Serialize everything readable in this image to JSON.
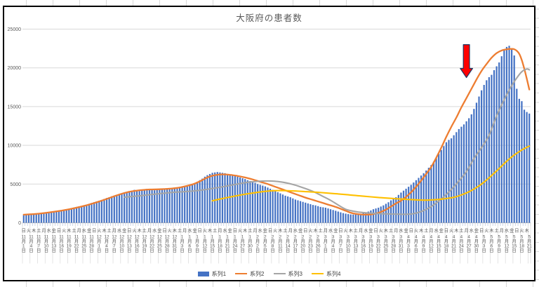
{
  "sheet": {
    "gridline_color": "#d9d9d9",
    "background": "#ffffff"
  },
  "chart": {
    "title": "大阪府の患者数",
    "title_color": "#595959",
    "background": "#ffffff",
    "border_color": "#000000",
    "plot": {
      "gridline_color": "#d9d9d9",
      "axis_line_color": "#bfbfbf",
      "tick_color": "#c2cbdf",
      "separator_color": "#d9d9d9"
    },
    "y_axis": {
      "min": 0,
      "max": 25000,
      "step": 5000,
      "tick_labels": [
        "0",
        "5000",
        "10000",
        "15000",
        "20000",
        "25000"
      ],
      "label_color": "#595959"
    },
    "x_axis": {
      "label_color": "#595959",
      "dow_cycle": [
        "日",
        "月",
        "火",
        "水",
        "木",
        "金",
        "土"
      ],
      "dow_label_interval": 2,
      "date_label_interval": 3,
      "month_suffix": "月",
      "day_suffix": "日",
      "months": [
        {
          "num": "11",
          "days": 30
        },
        {
          "num": "12",
          "days": 31
        },
        {
          "num": "1",
          "days": 31
        },
        {
          "num": "2",
          "days": 28
        },
        {
          "num": "3",
          "days": 31
        },
        {
          "num": "4",
          "days": 30
        },
        {
          "num": "5",
          "days": 21
        }
      ],
      "first_label": "11月1日",
      "last_label": "5月21日"
    },
    "legend": [
      {
        "label": "系列1",
        "color": "#4472c4",
        "marker": "bar"
      },
      {
        "label": "系列2",
        "color": "#ed7d31",
        "marker": "line"
      },
      {
        "label": "系列3",
        "color": "#a5a5a5",
        "marker": "line"
      },
      {
        "label": "系列4",
        "color": "#ffc000",
        "marker": "line"
      }
    ],
    "annotation_arrow": {
      "fill": "#ff0000",
      "outline": "#1f3864",
      "category_index": 176,
      "tail_value": 23000,
      "tip_value": 18750
    }
  },
  "chart_data": {
    "type": "combo: bar + 3 lines",
    "title": "大阪府の患者数",
    "x_start": "11月1日",
    "x_end": "5月21日",
    "x_step_days": 1,
    "n_categories": 202,
    "ylim": [
      0,
      25000
    ],
    "grid": true,
    "legend_position": "bottom",
    "series": [
      {
        "name": "系列1",
        "type": "bar",
        "color": "#4472c4",
        "values": [
          1000,
          1030,
          1010,
          1060,
          1100,
          1140,
          1180,
          1220,
          1210,
          1260,
          1320,
          1380,
          1440,
          1500,
          1560,
          1620,
          1680,
          1740,
          1800,
          1880,
          1960,
          2050,
          2130,
          2100,
          2220,
          2340,
          2450,
          2560,
          2660,
          2760,
          2850,
          2950,
          3080,
          3200,
          3300,
          3420,
          3520,
          3600,
          3700,
          3800,
          3900,
          3980,
          4050,
          4150,
          4250,
          4200,
          4100,
          4180,
          4300,
          4380,
          4300,
          4250,
          4200,
          4280,
          4350,
          4300,
          4350,
          4400,
          4380,
          4420,
          4450,
          4500,
          4550,
          4600,
          4700,
          4800,
          4850,
          4950,
          5100,
          5300,
          5500,
          5700,
          5950,
          6150,
          6300,
          6450,
          6500,
          6550,
          6500,
          6450,
          6400,
          6300,
          6250,
          6150,
          6050,
          5950,
          5850,
          5750,
          5650,
          5500,
          5400,
          5300,
          5150,
          5000,
          4900,
          4800,
          4700,
          4550,
          4400,
          4250,
          4100,
          3950,
          3800,
          3650,
          3500,
          3400,
          3300,
          3150,
          3000,
          2900,
          2800,
          2700,
          2600,
          2500,
          2400,
          2300,
          2250,
          2150,
          2050,
          2000,
          1950,
          1850,
          1750,
          1650,
          1550,
          1450,
          1350,
          1250,
          1180,
          1120,
          1080,
          1060,
          1090,
          1130,
          1180,
          1250,
          1350,
          1450,
          1600,
          1750,
          1850,
          1950,
          2100,
          2250,
          2450,
          2650,
          2900,
          3100,
          3300,
          3600,
          3900,
          4150,
          4400,
          4650,
          4900,
          5200,
          5500,
          5800,
          6100,
          6400,
          6750,
          7100,
          7450,
          7900,
          8400,
          8900,
          9400,
          9900,
          10400,
          10700,
          10900,
          11300,
          11700,
          12100,
          12400,
          12700,
          13100,
          13500,
          14000,
          14700,
          15500,
          16300,
          17100,
          17800,
          18400,
          18800,
          19100,
          19700,
          20200,
          20700,
          21500,
          22300,
          22700,
          22850,
          22500,
          21600,
          17300,
          16000,
          15700,
          14600,
          14300,
          14100
        ]
      },
      {
        "name": "系列2",
        "type": "line",
        "color": "#ed7d31",
        "width": 2.3,
        "points": [
          [
            0,
            1050
          ],
          [
            6,
            1180
          ],
          [
            12,
            1420
          ],
          [
            18,
            1750
          ],
          [
            24,
            2180
          ],
          [
            30,
            2750
          ],
          [
            34,
            3200
          ],
          [
            38,
            3650
          ],
          [
            42,
            4000
          ],
          [
            46,
            4200
          ],
          [
            50,
            4300
          ],
          [
            54,
            4330
          ],
          [
            58,
            4400
          ],
          [
            61,
            4500
          ],
          [
            64,
            4700
          ],
          [
            67,
            4950
          ],
          [
            70,
            5350
          ],
          [
            73,
            5850
          ],
          [
            76,
            6150
          ],
          [
            79,
            6250
          ],
          [
            82,
            6200
          ],
          [
            85,
            6050
          ],
          [
            88,
            5850
          ],
          [
            91,
            5600
          ],
          [
            94,
            5300
          ],
          [
            97,
            5000
          ],
          [
            100,
            4650
          ],
          [
            103,
            4300
          ],
          [
            106,
            3950
          ],
          [
            109,
            3600
          ],
          [
            112,
            3250
          ],
          [
            115,
            2950
          ],
          [
            118,
            2650
          ],
          [
            121,
            2350
          ],
          [
            124,
            2050
          ],
          [
            126,
            1800
          ],
          [
            128,
            1550
          ],
          [
            130,
            1300
          ],
          [
            132,
            1150
          ],
          [
            134,
            1080
          ],
          [
            136,
            1050
          ],
          [
            138,
            1080
          ],
          [
            140,
            1200
          ],
          [
            142,
            1400
          ],
          [
            144,
            1700
          ],
          [
            146,
            2100
          ],
          [
            148,
            2500
          ],
          [
            150,
            2850
          ],
          [
            152,
            3350
          ],
          [
            154,
            3950
          ],
          [
            156,
            4650
          ],
          [
            158,
            5450
          ],
          [
            160,
            6300
          ],
          [
            162,
            7200
          ],
          [
            164,
            8400
          ],
          [
            166,
            9700
          ],
          [
            168,
            11100
          ],
          [
            170,
            12400
          ],
          [
            172,
            13600
          ],
          [
            174,
            14900
          ],
          [
            176,
            16100
          ],
          [
            178,
            17300
          ],
          [
            180,
            18500
          ],
          [
            182,
            19600
          ],
          [
            184,
            20500
          ],
          [
            186,
            21300
          ],
          [
            188,
            21900
          ],
          [
            190,
            22250
          ],
          [
            192,
            22400
          ],
          [
            194,
            22450
          ],
          [
            195,
            22400
          ],
          [
            196,
            22200
          ],
          [
            197,
            21800
          ],
          [
            198,
            21000
          ],
          [
            199,
            19900
          ],
          [
            200,
            18600
          ],
          [
            201,
            17200
          ]
        ]
      },
      {
        "name": "系列3",
        "type": "line",
        "color": "#a5a5a5",
        "width": 2.1,
        "points": [
          [
            40,
            3300
          ],
          [
            44,
            3420
          ],
          [
            48,
            3550
          ],
          [
            52,
            3700
          ],
          [
            56,
            3830
          ],
          [
            60,
            3950
          ],
          [
            64,
            4020
          ],
          [
            68,
            4120
          ],
          [
            72,
            4280
          ],
          [
            76,
            4480
          ],
          [
            80,
            4700
          ],
          [
            84,
            4950
          ],
          [
            88,
            5180
          ],
          [
            92,
            5330
          ],
          [
            95,
            5390
          ],
          [
            98,
            5400
          ],
          [
            101,
            5330
          ],
          [
            104,
            5180
          ],
          [
            107,
            4950
          ],
          [
            110,
            4650
          ],
          [
            113,
            4300
          ],
          [
            116,
            3900
          ],
          [
            119,
            3400
          ],
          [
            122,
            2900
          ],
          [
            125,
            2300
          ],
          [
            128,
            1750
          ],
          [
            131,
            1500
          ],
          [
            134,
            1350
          ],
          [
            137,
            1260
          ],
          [
            140,
            1200
          ],
          [
            143,
            1160
          ],
          [
            146,
            1130
          ],
          [
            149,
            1110
          ],
          [
            152,
            1100
          ],
          [
            155,
            1180
          ],
          [
            158,
            1450
          ],
          [
            161,
            1900
          ],
          [
            164,
            2550
          ],
          [
            167,
            3350
          ],
          [
            170,
            4300
          ],
          [
            173,
            5400
          ],
          [
            176,
            6600
          ],
          [
            179,
            8300
          ],
          [
            182,
            9700
          ],
          [
            185,
            11300
          ],
          [
            188,
            13800
          ],
          [
            191,
            15900
          ],
          [
            194,
            17700
          ],
          [
            196,
            18700
          ],
          [
            198,
            19500
          ],
          [
            200,
            19850
          ],
          [
            201,
            19750
          ]
        ]
      },
      {
        "name": "系列4",
        "type": "line",
        "color": "#ffc000",
        "width": 2.1,
        "points": [
          [
            75,
            2840
          ],
          [
            78,
            3060
          ],
          [
            81,
            3260
          ],
          [
            84,
            3450
          ],
          [
            87,
            3630
          ],
          [
            90,
            3790
          ],
          [
            93,
            3930
          ],
          [
            96,
            4060
          ],
          [
            99,
            4140
          ],
          [
            102,
            4160
          ],
          [
            105,
            4140
          ],
          [
            108,
            4100
          ],
          [
            111,
            4050
          ],
          [
            114,
            3990
          ],
          [
            117,
            3930
          ],
          [
            120,
            3860
          ],
          [
            123,
            3780
          ],
          [
            126,
            3700
          ],
          [
            129,
            3610
          ],
          [
            132,
            3520
          ],
          [
            135,
            3430
          ],
          [
            138,
            3350
          ],
          [
            141,
            3270
          ],
          [
            144,
            3200
          ],
          [
            147,
            3130
          ],
          [
            150,
            3070
          ],
          [
            153,
            3010
          ],
          [
            156,
            2960
          ],
          [
            159,
            2930
          ],
          [
            162,
            2950
          ],
          [
            165,
            3020
          ],
          [
            168,
            3130
          ],
          [
            171,
            3290
          ],
          [
            174,
            3600
          ],
          [
            177,
            4000
          ],
          [
            180,
            4550
          ],
          [
            183,
            5250
          ],
          [
            186,
            6100
          ],
          [
            189,
            7000
          ],
          [
            192,
            7950
          ],
          [
            195,
            8750
          ],
          [
            198,
            9400
          ],
          [
            200,
            9750
          ],
          [
            201,
            9900
          ]
        ]
      }
    ]
  }
}
